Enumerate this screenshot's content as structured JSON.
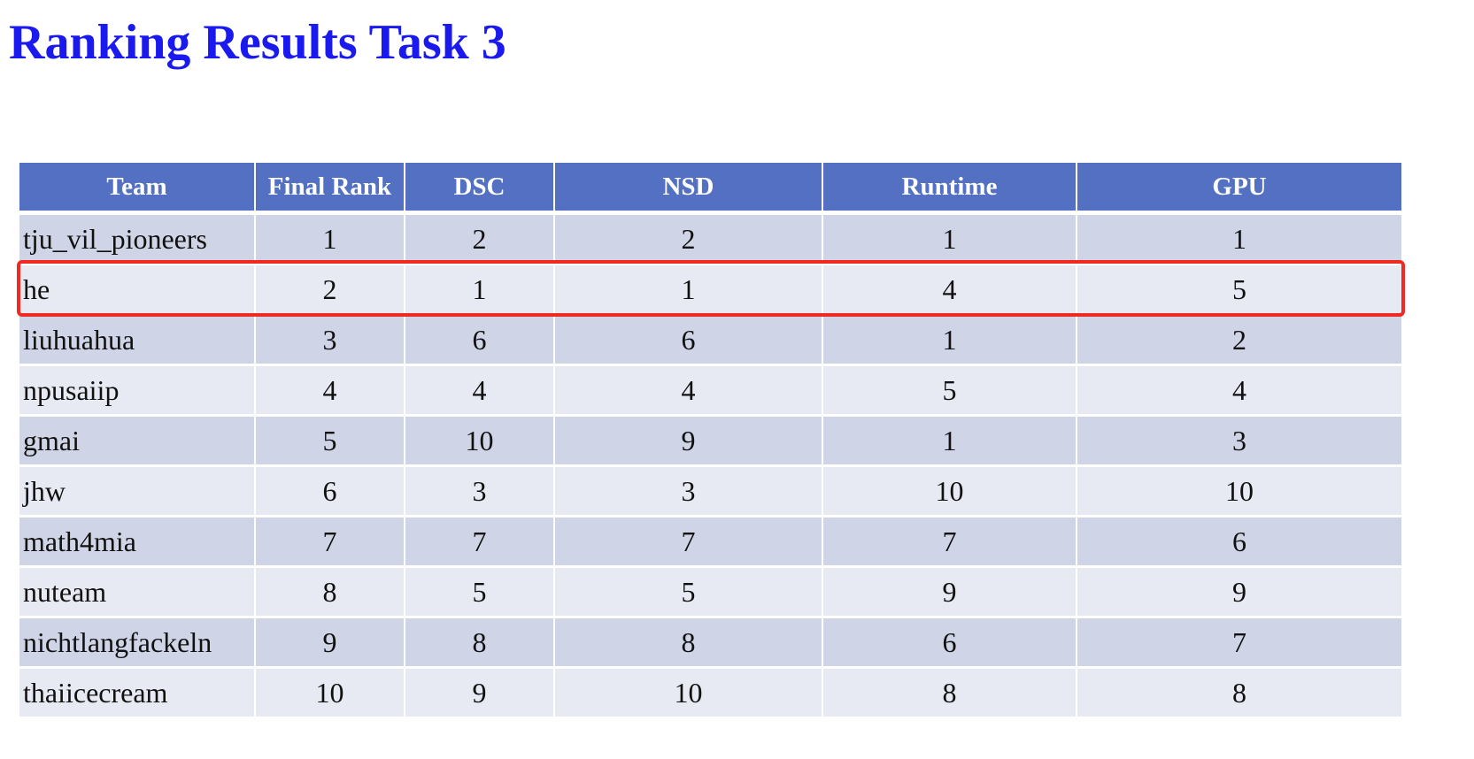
{
  "title": "Ranking Results Task 3",
  "table": {
    "columns": [
      "Team",
      "Final Rank",
      "DSC",
      "NSD",
      "Runtime",
      "GPU"
    ],
    "rows": [
      [
        "tju_vil_pioneers",
        "1",
        "2",
        "2",
        "1",
        "1"
      ],
      [
        "he",
        "2",
        "1",
        "1",
        "4",
        "5"
      ],
      [
        "liuhuahua",
        "3",
        "6",
        "6",
        "1",
        "2"
      ],
      [
        "npusaiip",
        "4",
        "4",
        "4",
        "5",
        "4"
      ],
      [
        "gmai",
        "5",
        "10",
        "9",
        "1",
        "3"
      ],
      [
        "jhw",
        "6",
        "3",
        "3",
        "10",
        "10"
      ],
      [
        "math4mia",
        "7",
        "7",
        "7",
        "7",
        "6"
      ],
      [
        "nuteam",
        "8",
        "5",
        "5",
        "9",
        "9"
      ],
      [
        "nichtlangfackeln",
        "9",
        "8",
        "8",
        "6",
        "7"
      ],
      [
        "thaiicecream",
        "10",
        "9",
        "10",
        "8",
        "8"
      ]
    ],
    "highlighted_row_team": "he"
  },
  "colors": {
    "title": "#1a1aee",
    "header_bg": "#5470c2",
    "row_dark": "#cfd4e7",
    "row_light": "#e8eaf3",
    "highlight_border": "#ee2a22"
  }
}
